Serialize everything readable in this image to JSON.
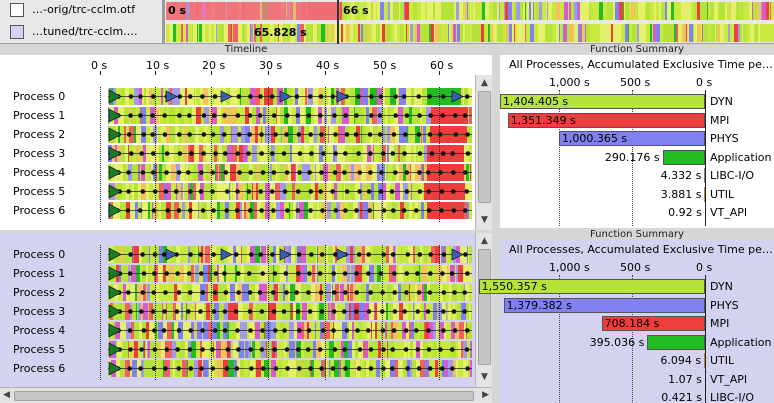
{
  "traces": [
    {
      "name": "…-orig/trc-cclm.otf",
      "strip_start": "0 s",
      "strip_end": "66 s"
    },
    {
      "name": "…tuned/trc-cclm.…",
      "marker_time": "65.828 s"
    }
  ],
  "timeline": {
    "title": "Timeline",
    "ticks": [
      "0 s",
      "10 s",
      "20 s",
      "30 s",
      "40 s",
      "50 s",
      "60 s"
    ],
    "top_processes": [
      "Process 0",
      "Process 1",
      "Process 2",
      "Process 3",
      "Process 4",
      "Process 5",
      "Process 6"
    ],
    "bottom_processes": [
      "Process 0",
      "Process 1",
      "Process 2",
      "Process 3",
      "Process 4",
      "Process 5",
      "Process 6"
    ]
  },
  "function_summary_top": {
    "title": "Function Summary",
    "subtitle": "All Processes, Accumulated Exclusive Time pe…",
    "axis_ticks": [
      "1,000 s",
      "500 s",
      "0 s"
    ],
    "rows": [
      {
        "name": "DYN",
        "value": 1404.405,
        "label": "1,404.405 s",
        "color": "#b6e33a"
      },
      {
        "name": "MPI",
        "value": 1351.349,
        "label": "1,351.349 s",
        "color": "#ee3d3d"
      },
      {
        "name": "PHYS",
        "value": 1000.365,
        "label": "1,000.365 s",
        "color": "#8080f0"
      },
      {
        "name": "Application",
        "value": 290.176,
        "label": "290.176 s",
        "color": "#22bb22"
      },
      {
        "name": "LIBC-I/O",
        "value": 4.332,
        "label": "4.332 s",
        "color": "#888888"
      },
      {
        "name": "UTIL",
        "value": 3.881,
        "label": "3.881 s",
        "color": "#c08040"
      },
      {
        "name": "VT_API",
        "value": 0.92,
        "label": "0.92 s",
        "color": "#5577aa"
      }
    ]
  },
  "function_summary_bottom": {
    "title": "Function Summary",
    "subtitle": "All Processes, Accumulated Exclusive Time pe…",
    "axis_ticks": [
      "1,000 s",
      "500 s",
      "0 s"
    ],
    "rows": [
      {
        "name": "DYN",
        "value": 1550.357,
        "label": "1,550.357 s",
        "color": "#b6e33a"
      },
      {
        "name": "PHYS",
        "value": 1379.382,
        "label": "1,379.382 s",
        "color": "#8080f0"
      },
      {
        "name": "MPI",
        "value": 708.184,
        "label": "708.184 s",
        "color": "#ee3d3d"
      },
      {
        "name": "Application",
        "value": 395.036,
        "label": "395.036 s",
        "color": "#22bb22"
      },
      {
        "name": "UTIL",
        "value": 6.094,
        "label": "6.094 s",
        "color": "#c08040"
      },
      {
        "name": "VT_API",
        "value": 1.07,
        "label": "1.07 s",
        "color": "#5577aa"
      },
      {
        "name": "LIBC-I/O",
        "value": 0.421,
        "label": "0.421 s",
        "color": "#888888"
      }
    ]
  },
  "colors": {
    "dyn": "#b6e33a",
    "mpi": "#ee3d3d",
    "phys": "#8080f0",
    "application": "#22bb22",
    "selected_panel_bg": "#d3d3f1",
    "panel_bg": "#ffffff"
  }
}
